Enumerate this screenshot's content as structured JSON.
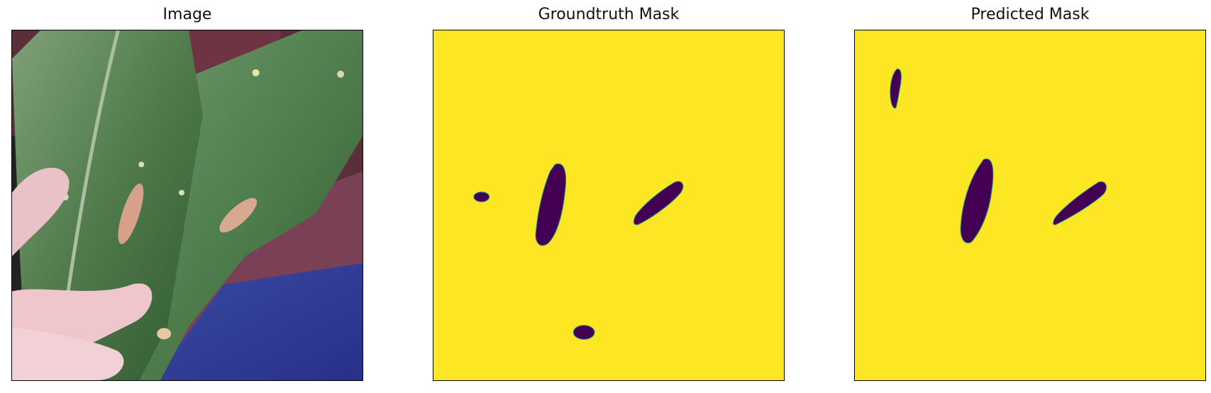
{
  "figure": {
    "panels": [
      {
        "title": "Image"
      },
      {
        "title": "Groundtruth Mask"
      },
      {
        "title": "Predicted Mask"
      }
    ]
  },
  "colors": {
    "mask_foreground": "#fde725",
    "mask_lesion": "#440154"
  }
}
